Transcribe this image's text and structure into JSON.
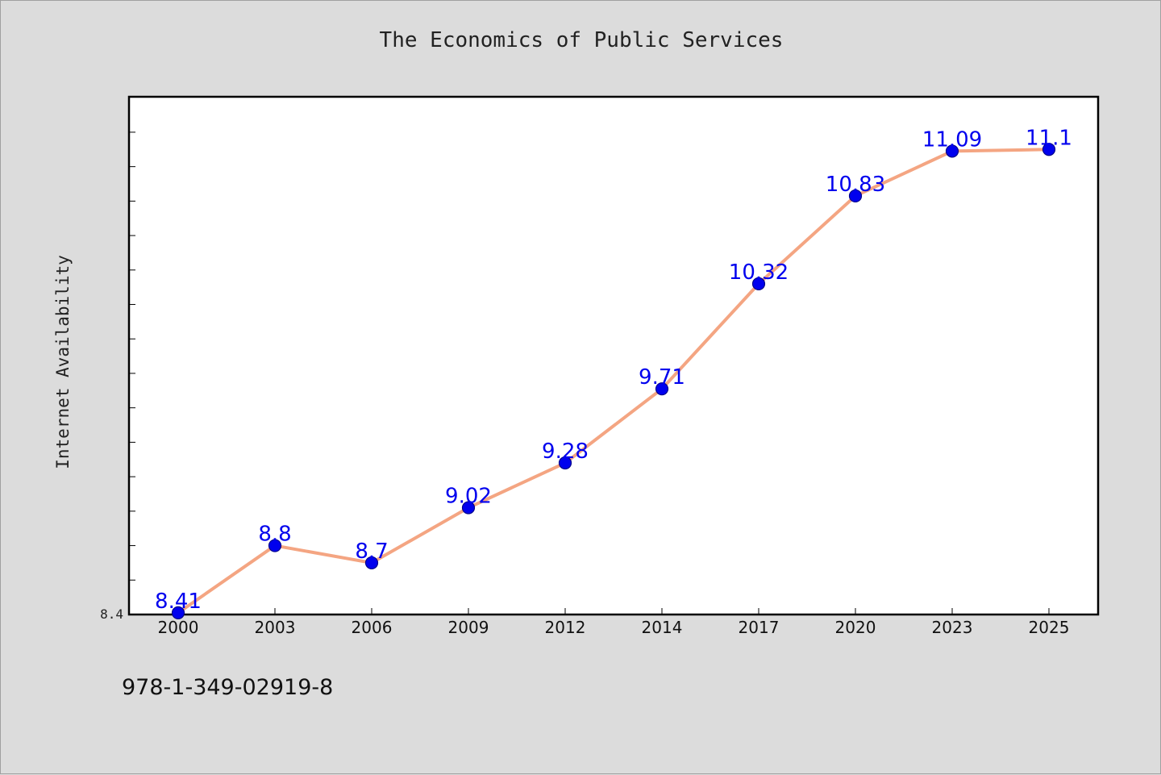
{
  "title": "The Economics of Public Services",
  "ylabel": "Internet Availability",
  "footer_text": "978-1-349-02919-8",
  "colors": {
    "background": "#dcdcdc",
    "plot_background": "#ffffff",
    "line": "#f4a582",
    "marker_fill": "#0000ee",
    "marker_edge": "#00008b",
    "data_label": "#0000ee"
  },
  "chart_data": {
    "type": "line",
    "title": "The Economics of Public Services",
    "xlabel": "",
    "ylabel": "Internet Availability",
    "categories": [
      "2000",
      "2003",
      "2006",
      "2009",
      "2012",
      "2014",
      "2017",
      "2020",
      "2023",
      "2025"
    ],
    "series": [
      {
        "values": [
          8.41,
          8.8,
          8.7,
          9.02,
          9.28,
          9.71,
          10.32,
          10.83,
          11.09,
          11.1
        ]
      }
    ],
    "data_labels": [
      "8.41",
      "8.8",
      "8.7",
      "9.02",
      "9.28",
      "9.71",
      "10.32",
      "10.83",
      "11.09",
      "11.1"
    ],
    "y_tick_labels": [
      "8.4"
    ],
    "ylim": [
      8.4,
      11.4
    ],
    "grid": false,
    "legend": false,
    "markers": "circle"
  }
}
